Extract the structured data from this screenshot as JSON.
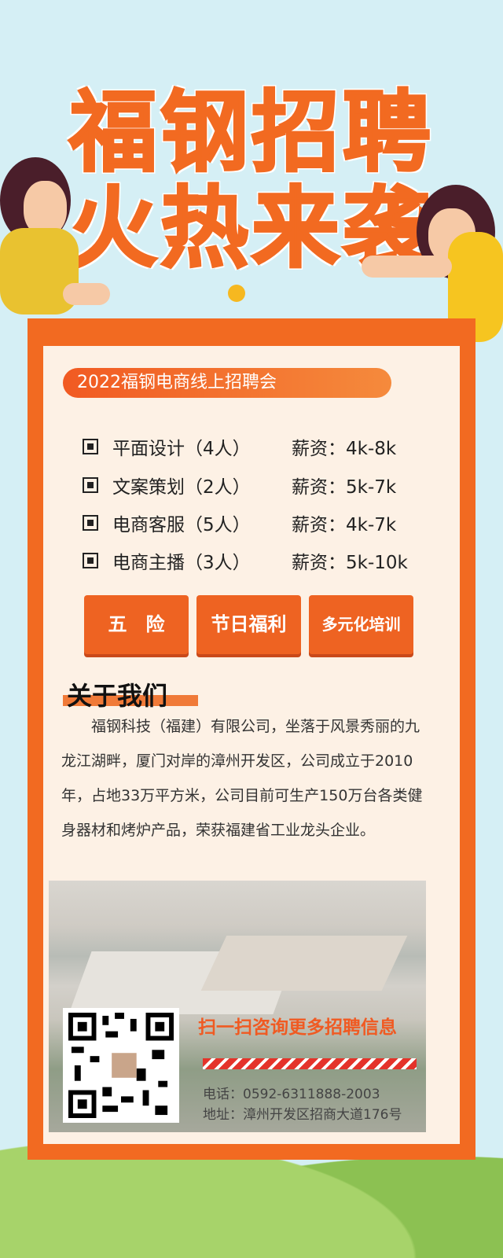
{
  "title": {
    "line1": "福钢招聘",
    "line2": "火热来袭"
  },
  "banner": "2022福钢电商线上招聘会",
  "jobs": [
    {
      "name": "平面设计（4人）",
      "salary": "薪资：4k-8k"
    },
    {
      "name": "文案策划（2人）",
      "salary": "薪资：5k-7k"
    },
    {
      "name": "电商客服（5人）",
      "salary": "薪资：4k-7k"
    },
    {
      "name": "电商主播（3人）",
      "salary": "薪资：5k-10k"
    }
  ],
  "benefits": [
    "五　险",
    "节日福利",
    "多元化培训"
  ],
  "about": {
    "heading": "关于我们",
    "text": "福钢科技（福建）有限公司，坐落于风景秀丽的九龙江湖畔，厦门对岸的漳州开发区，公司成立于2010年，占地33万平方米，公司目前可生产150万台各类健身器材和烤炉产品，荣获福建省工业龙头企业。"
  },
  "contact": {
    "scan": "扫一扫咨询更多招聘信息",
    "phone": "电话：0592-6311888-2003",
    "address": "地址：漳州开发区招商大道176号"
  },
  "colors": {
    "accent": "#f26a21",
    "panel": "#fdf1e5",
    "sky": "#d5eff5",
    "grass": "#8cc152"
  }
}
